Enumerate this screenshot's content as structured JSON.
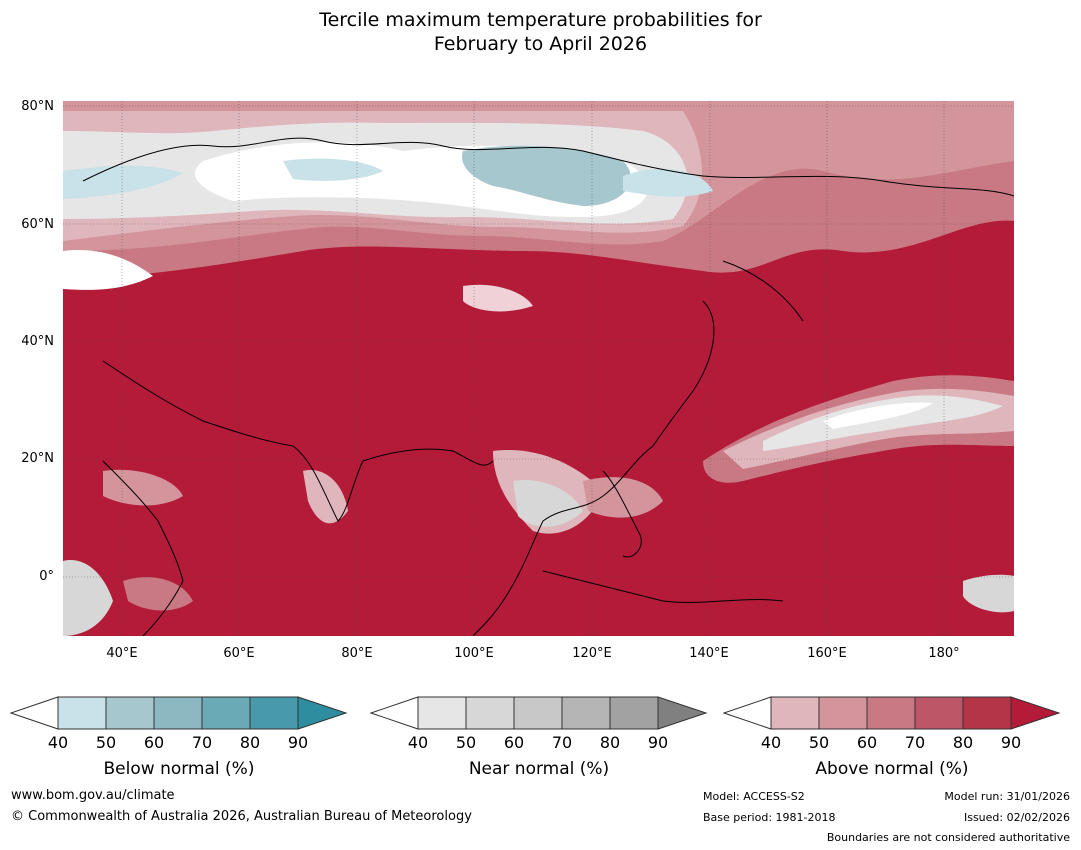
{
  "title_line1": "Tercile maximum temperature probabilities for",
  "title_line2": "February to April 2026",
  "axes": {
    "y_labels": [
      "80°N",
      "60°N",
      "40°N",
      "20°N",
      "0°"
    ],
    "x_labels": [
      "40°E",
      "60°E",
      "80°E",
      "100°E",
      "120°E",
      "140°E",
      "160°E",
      "180°"
    ]
  },
  "legends": {
    "below": {
      "title": "Below normal (%)",
      "ticks": [
        "40",
        "50",
        "60",
        "70",
        "80",
        "90"
      ],
      "colors": [
        "#ffffff",
        "#c9e1e8",
        "#a6c7cd",
        "#8cb9c1",
        "#6aaab6",
        "#4899a9",
        "#2e8ea0"
      ]
    },
    "near": {
      "title": "Near normal (%)",
      "ticks": [
        "40",
        "50",
        "60",
        "70",
        "80",
        "90"
      ],
      "colors": [
        "#ffffff",
        "#e6e6e6",
        "#d7d7d7",
        "#c8c8c8",
        "#b5b5b5",
        "#a2a2a2",
        "#808080"
      ]
    },
    "above": {
      "title": "Above normal (%)",
      "ticks": [
        "40",
        "50",
        "60",
        "70",
        "80",
        "90"
      ],
      "colors": [
        "#ffffff",
        "#dfb6bb",
        "#d4949c",
        "#c97983",
        "#bd5768",
        "#b53548",
        "#b31b38"
      ]
    }
  },
  "footer": {
    "website": "www.bom.gov.au/climate",
    "copyright": "© Commonwealth of Australia 2026, Australian Bureau of Meteorology",
    "model": "Model: ACCESS-S2",
    "base_period": "Base period: 1981-2018",
    "model_run": "Model run: 31/01/2026",
    "issued": "Issued: 02/02/2026",
    "disclaimer": "Boundaries are not considered authoritative"
  }
}
